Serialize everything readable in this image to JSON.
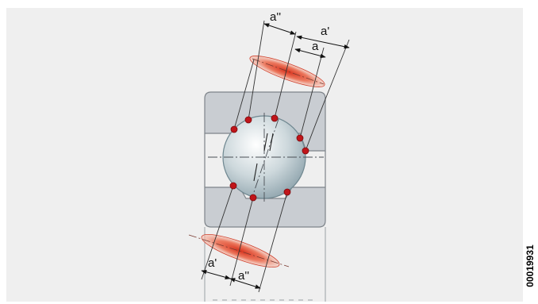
{
  "labels": {
    "a_double_top": "a''",
    "a_prime_top": "a'",
    "a_top": "a",
    "a_prime_bottom": "a'",
    "a_double_bottom": "a''"
  },
  "drawing_id": "00019931",
  "colors": {
    "panel": "#efefef",
    "ring": "#c9cdd2",
    "ring_edge": "#8a8f95",
    "ball_light": "#ffffff",
    "ball_dark": "#8fa4ad",
    "contact_point": "#c0151a",
    "ellipse": "#e86a52"
  }
}
